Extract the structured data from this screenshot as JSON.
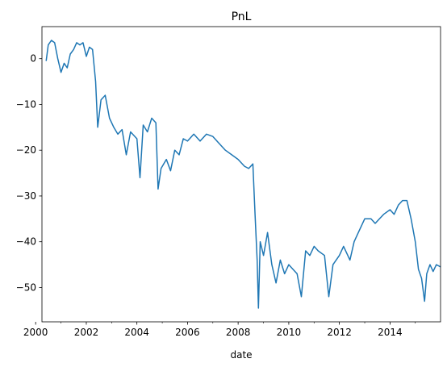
{
  "chart_data": {
    "type": "line",
    "title": "PnL",
    "xlabel": "date",
    "ylabel": "",
    "xlim": [
      "2000-04-01",
      "2015-12-31"
    ],
    "ylim": [
      -57.5,
      7.0
    ],
    "grid": false,
    "legend": "none",
    "x_ticks": [
      "2000",
      "2002",
      "2004",
      "2006",
      "2008",
      "2010",
      "2012",
      "2014"
    ],
    "y_ticks": [
      0,
      -10,
      -20,
      -30,
      -40,
      -50
    ],
    "series": [
      {
        "color": "#1f77b4",
        "points": [
          [
            "2000-06-01",
            -0.5
          ],
          [
            "2000-07-01",
            3.0
          ],
          [
            "2000-08-15",
            4.0
          ],
          [
            "2000-10-01",
            3.5
          ],
          [
            "2000-11-15",
            0.0
          ],
          [
            "2001-01-01",
            -3.0
          ],
          [
            "2001-02-15",
            -1.0
          ],
          [
            "2001-04-01",
            -2.0
          ],
          [
            "2001-05-15",
            1.0
          ],
          [
            "2001-07-01",
            2.0
          ],
          [
            "2001-08-15",
            3.5
          ],
          [
            "2001-10-01",
            3.0
          ],
          [
            "2001-11-15",
            3.5
          ],
          [
            "2002-01-01",
            0.5
          ],
          [
            "2002-02-15",
            2.5
          ],
          [
            "2002-04-01",
            2.0
          ],
          [
            "2002-05-15",
            -5.0
          ],
          [
            "2002-06-15",
            -15.0
          ],
          [
            "2002-08-01",
            -9.0
          ],
          [
            "2002-10-01",
            -8.0
          ],
          [
            "2002-12-01",
            -13.0
          ],
          [
            "2003-02-01",
            -15.0
          ],
          [
            "2003-04-01",
            -16.5
          ],
          [
            "2003-06-01",
            -15.5
          ],
          [
            "2003-08-01",
            -21.0
          ],
          [
            "2003-10-01",
            -16.0
          ],
          [
            "2004-01-01",
            -17.5
          ],
          [
            "2004-02-15",
            -26.0
          ],
          [
            "2004-04-01",
            -14.5
          ],
          [
            "2004-06-01",
            -16.0
          ],
          [
            "2004-08-01",
            -13.0
          ],
          [
            "2004-10-01",
            -14.0
          ],
          [
            "2004-11-01",
            -28.5
          ],
          [
            "2004-12-15",
            -24.0
          ],
          [
            "2005-03-01",
            -22.0
          ],
          [
            "2005-05-01",
            -24.5
          ],
          [
            "2005-07-01",
            -20.0
          ],
          [
            "2005-09-01",
            -21.0
          ],
          [
            "2005-11-01",
            -17.5
          ],
          [
            "2006-01-01",
            -18.0
          ],
          [
            "2006-04-01",
            -16.5
          ],
          [
            "2006-07-01",
            -18.0
          ],
          [
            "2006-10-01",
            -16.5
          ],
          [
            "2007-01-01",
            -17.0
          ],
          [
            "2007-04-01",
            -18.5
          ],
          [
            "2007-07-01",
            -20.0
          ],
          [
            "2007-10-01",
            -21.0
          ],
          [
            "2008-01-01",
            -22.0
          ],
          [
            "2008-04-01",
            -23.5
          ],
          [
            "2008-06-01",
            -24.0
          ],
          [
            "2008-08-01",
            -23.0
          ],
          [
            "2008-09-01",
            -34.0
          ],
          [
            "2008-10-01",
            -44.0
          ],
          [
            "2008-10-20",
            -54.5
          ],
          [
            "2008-11-15",
            -40.0
          ],
          [
            "2009-01-01",
            -43.0
          ],
          [
            "2009-03-01",
            -38.0
          ],
          [
            "2009-05-01",
            -45.0
          ],
          [
            "2009-07-01",
            -49.0
          ],
          [
            "2009-09-01",
            -44.0
          ],
          [
            "2009-11-01",
            -47.0
          ],
          [
            "2010-01-01",
            -45.0
          ],
          [
            "2010-03-01",
            -46.0
          ],
          [
            "2010-05-01",
            -47.0
          ],
          [
            "2010-07-01",
            -52.0
          ],
          [
            "2010-09-01",
            -42.0
          ],
          [
            "2010-11-01",
            -43.0
          ],
          [
            "2011-01-01",
            -41.0
          ],
          [
            "2011-03-01",
            -42.0
          ],
          [
            "2011-06-01",
            -43.0
          ],
          [
            "2011-08-01",
            -52.0
          ],
          [
            "2011-10-01",
            -45.0
          ],
          [
            "2012-01-01",
            -43.0
          ],
          [
            "2012-03-01",
            -41.0
          ],
          [
            "2012-06-01",
            -44.0
          ],
          [
            "2012-08-01",
            -40.0
          ],
          [
            "2012-10-01",
            -38.0
          ],
          [
            "2013-01-01",
            -35.0
          ],
          [
            "2013-04-01",
            -35.0
          ],
          [
            "2013-06-01",
            -36.0
          ],
          [
            "2013-08-01",
            -35.0
          ],
          [
            "2013-10-01",
            -34.0
          ],
          [
            "2014-01-01",
            -33.0
          ],
          [
            "2014-03-01",
            -34.0
          ],
          [
            "2014-05-01",
            -32.0
          ],
          [
            "2014-07-01",
            -31.0
          ],
          [
            "2014-09-01",
            -31.0
          ],
          [
            "2014-11-01",
            -35.0
          ],
          [
            "2015-01-01",
            -40.0
          ],
          [
            "2015-02-15",
            -46.0
          ],
          [
            "2015-04-01",
            -48.0
          ],
          [
            "2015-05-15",
            -53.0
          ],
          [
            "2015-06-15",
            -47.0
          ],
          [
            "2015-08-01",
            -45.0
          ],
          [
            "2015-09-15",
            -46.5
          ],
          [
            "2015-11-01",
            -45.0
          ],
          [
            "2015-12-31",
            -45.5
          ]
        ]
      }
    ]
  }
}
